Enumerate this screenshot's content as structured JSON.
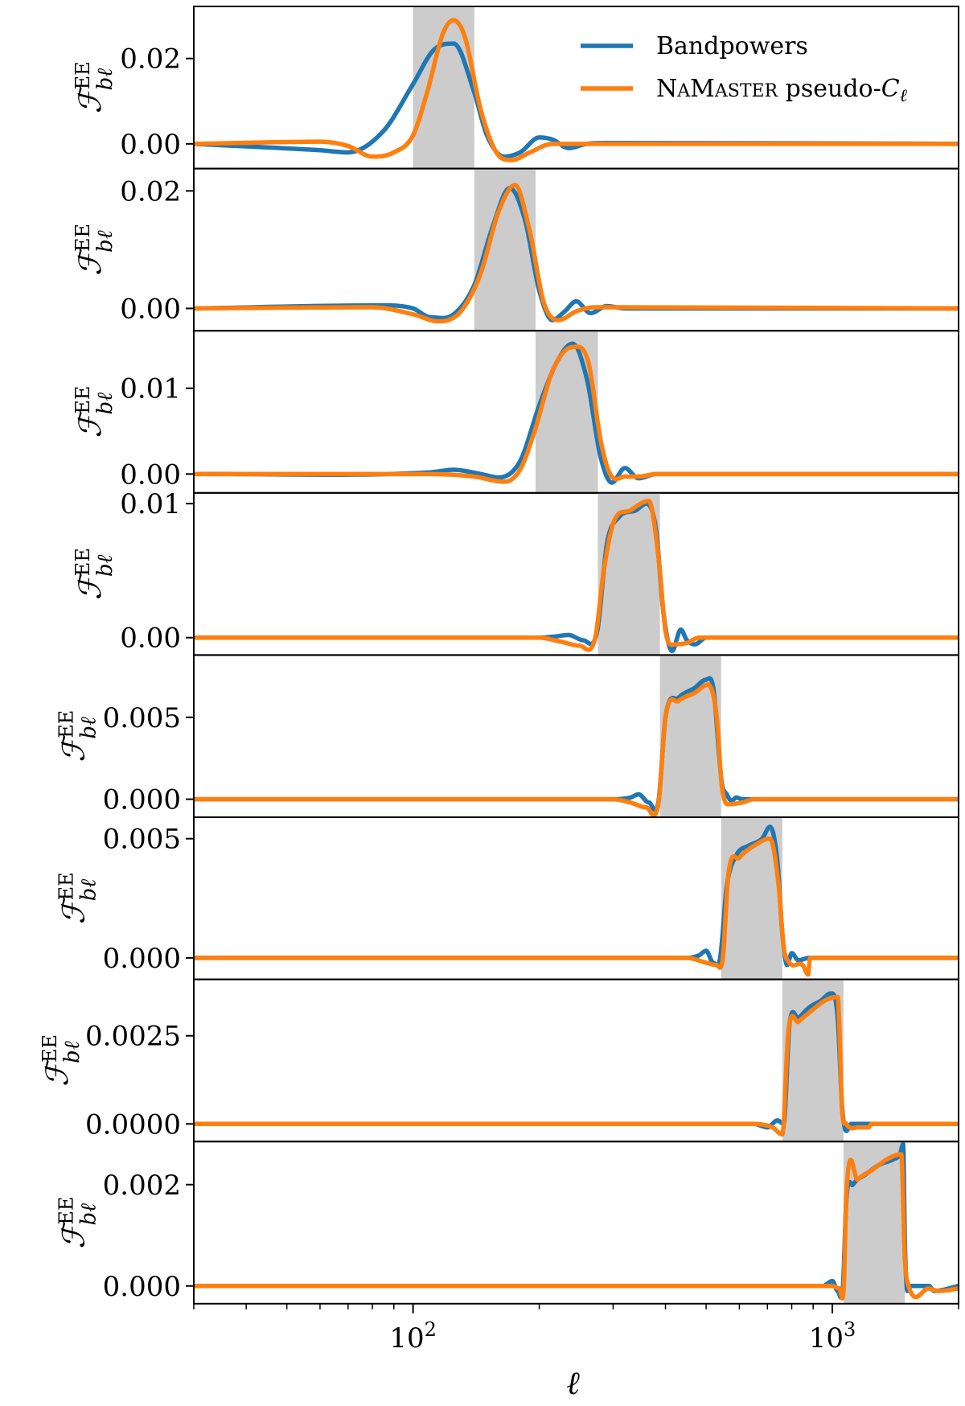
{
  "chart_data": {
    "type": "line",
    "x_scale": "log",
    "xlim": [
      30,
      2000
    ],
    "xlabel": "ℓ",
    "x_ticks": [
      {
        "value": 100,
        "base": "10",
        "exp": "2"
      },
      {
        "value": 1000,
        "base": "10",
        "exp": "3"
      }
    ],
    "ylabel": {
      "main": "ℱ",
      "sup": "EE",
      "sub": "bℓ"
    },
    "legend": {
      "position": "top-right",
      "entries": [
        {
          "label": "Bandpowers",
          "color": "#1f77b4"
        },
        {
          "label_parts": [
            "N",
            "A",
            "M",
            "ASTER",
            " pseudo-",
            "C",
            "ℓ"
          ],
          "color": "#ff7f0e"
        }
      ]
    },
    "colors": {
      "bandpowers": "#1f77b4",
      "namaster": "#ff7f0e",
      "band_fill": "#cccccc"
    },
    "panels": [
      {
        "band": [
          100,
          140
        ],
        "ylim": [
          -0.0058,
          0.0322
        ],
        "yticks": [
          {
            "v": 0.0,
            "label": "0.00"
          },
          {
            "v": 0.02,
            "label": "0.02"
          }
        ],
        "bandpowers": [
          [
            30,
            0
          ],
          [
            60,
            -0.0015
          ],
          [
            70,
            -0.002
          ],
          [
            85,
            0.003
          ],
          [
            100,
            0.014
          ],
          [
            112,
            0.022
          ],
          [
            125,
            0.0235
          ],
          [
            140,
            0.012
          ],
          [
            150,
            0.002
          ],
          [
            165,
            -0.003
          ],
          [
            180,
            -0.002
          ],
          [
            200,
            0.0015
          ],
          [
            215,
            0.001
          ],
          [
            235,
            -0.001
          ],
          [
            260,
            0
          ],
          [
            300,
            0.0002
          ],
          [
            2000,
            0
          ]
        ],
        "namaster": [
          [
            30,
            0
          ],
          [
            60,
            0.0005
          ],
          [
            70,
            -0.0005
          ],
          [
            80,
            -0.003
          ],
          [
            90,
            -0.002
          ],
          [
            100,
            0.002
          ],
          [
            108,
            0.012
          ],
          [
            118,
            0.026
          ],
          [
            125,
            0.029
          ],
          [
            133,
            0.025
          ],
          [
            145,
            0.008
          ],
          [
            158,
            -0.002
          ],
          [
            172,
            -0.0038
          ],
          [
            190,
            -0.002
          ],
          [
            215,
            0
          ],
          [
            2000,
            0
          ]
        ]
      },
      {
        "band": [
          140,
          196
        ],
        "ylim": [
          -0.0038,
          0.0238
        ],
        "yticks": [
          {
            "v": 0.0,
            "label": "0.00"
          },
          {
            "v": 0.02,
            "label": "0.02"
          }
        ],
        "bandpowers": [
          [
            30,
            0
          ],
          [
            80,
            0.0005
          ],
          [
            100,
            0
          ],
          [
            110,
            -0.0015
          ],
          [
            125,
            -0.001
          ],
          [
            140,
            0.004
          ],
          [
            155,
            0.014
          ],
          [
            170,
            0.0205
          ],
          [
            185,
            0.015
          ],
          [
            200,
            0.003
          ],
          [
            215,
            -0.002
          ],
          [
            230,
            -0.0005
          ],
          [
            245,
            0.0012
          ],
          [
            265,
            -0.0008
          ],
          [
            290,
            0.0004
          ],
          [
            320,
            0
          ],
          [
            2000,
            0
          ]
        ],
        "namaster": [
          [
            30,
            0
          ],
          [
            80,
            0.0002
          ],
          [
            100,
            -0.001
          ],
          [
            115,
            -0.0022
          ],
          [
            130,
            -0.0005
          ],
          [
            145,
            0.006
          ],
          [
            160,
            0.0165
          ],
          [
            175,
            0.021
          ],
          [
            190,
            0.013
          ],
          [
            205,
            0.001
          ],
          [
            222,
            -0.002
          ],
          [
            245,
            -0.0005
          ],
          [
            270,
            0.0002
          ],
          [
            2000,
            0
          ]
        ]
      },
      {
        "band": [
          196,
          276
        ],
        "ylim": [
          -0.0022,
          0.0167
        ],
        "yticks": [
          {
            "v": 0.0,
            "label": "0.00"
          },
          {
            "v": 0.01,
            "label": "0.01"
          }
        ],
        "bandpowers": [
          [
            30,
            0
          ],
          [
            110,
            0.0002
          ],
          [
            125,
            0.0005
          ],
          [
            145,
            0
          ],
          [
            160,
            -0.0004
          ],
          [
            180,
            0.0015
          ],
          [
            200,
            0.008
          ],
          [
            220,
            0.013
          ],
          [
            240,
            0.0152
          ],
          [
            260,
            0.011
          ],
          [
            280,
            0.002
          ],
          [
            298,
            -0.001
          ],
          [
            320,
            0.0007
          ],
          [
            345,
            -0.0005
          ],
          [
            380,
            0
          ],
          [
            2000,
            0
          ]
        ],
        "namaster": [
          [
            30,
            0
          ],
          [
            110,
            0
          ],
          [
            140,
            -0.0003
          ],
          [
            165,
            -0.0009
          ],
          [
            180,
            0.0005
          ],
          [
            195,
            0.005
          ],
          [
            215,
            0.012
          ],
          [
            240,
            0.0148
          ],
          [
            262,
            0.013
          ],
          [
            280,
            0.004
          ],
          [
            295,
            0
          ],
          [
            320,
            -0.0003
          ],
          [
            345,
            -0.0003
          ],
          [
            380,
            0
          ],
          [
            2000,
            0
          ]
        ]
      },
      {
        "band": [
          276,
          388
        ],
        "ylim": [
          -0.0013,
          0.0108
        ],
        "yticks": [
          {
            "v": 0.0,
            "label": "0.00"
          },
          {
            "v": 0.01,
            "label": "0.01"
          }
        ],
        "bandpowers": [
          [
            30,
            0
          ],
          [
            200,
            0
          ],
          [
            220,
            0.0001
          ],
          [
            235,
            0.0002
          ],
          [
            255,
            -0.0002
          ],
          [
            275,
            0.0005
          ],
          [
            290,
            0.007
          ],
          [
            310,
            0.009
          ],
          [
            340,
            0.0095
          ],
          [
            360,
            0.01
          ],
          [
            380,
            0.008
          ],
          [
            395,
            0.002
          ],
          [
            415,
            -0.001
          ],
          [
            435,
            0.0006
          ],
          [
            450,
            -0.0002
          ],
          [
            470,
            -0.0005
          ],
          [
            500,
            0
          ],
          [
            2000,
            0
          ]
        ],
        "namaster": [
          [
            30,
            0
          ],
          [
            200,
            0
          ],
          [
            225,
            -0.0003
          ],
          [
            250,
            -0.0006
          ],
          [
            272,
            0
          ],
          [
            285,
            0.005
          ],
          [
            300,
            0.0085
          ],
          [
            330,
            0.0095
          ],
          [
            365,
            0.0102
          ],
          [
            385,
            0.006
          ],
          [
            400,
            0.0005
          ],
          [
            420,
            -0.0005
          ],
          [
            450,
            -0.0004
          ],
          [
            480,
            0
          ],
          [
            2000,
            0
          ]
        ]
      },
      {
        "band": [
          388,
          543
        ],
        "ylim": [
          -0.0011,
          0.0088
        ],
        "yticks": [
          {
            "v": 0.0,
            "label": "0.000"
          },
          {
            "v": 0.005,
            "label": "0.005"
          }
        ],
        "bandpowers": [
          [
            30,
            0
          ],
          [
            300,
            0
          ],
          [
            330,
            0.0001
          ],
          [
            345,
            0.0003
          ],
          [
            365,
            -0.0002
          ],
          [
            385,
            -0.0001
          ],
          [
            400,
            0.005
          ],
          [
            430,
            0.0062
          ],
          [
            470,
            0.0068
          ],
          [
            500,
            0.0073
          ],
          [
            520,
            0.0068
          ],
          [
            545,
            0.001
          ],
          [
            560,
            0.0003
          ],
          [
            575,
            -0.0001
          ],
          [
            590,
            0.0001
          ],
          [
            610,
            0
          ],
          [
            2000,
            0
          ]
        ],
        "namaster": [
          [
            30,
            0
          ],
          [
            300,
            0
          ],
          [
            330,
            -0.0002
          ],
          [
            360,
            -0.0005
          ],
          [
            385,
            -0.0002
          ],
          [
            400,
            0.005
          ],
          [
            430,
            0.006
          ],
          [
            470,
            0.0065
          ],
          [
            505,
            0.007
          ],
          [
            530,
            0.005
          ],
          [
            545,
            0.0008
          ],
          [
            570,
            -0.0003
          ],
          [
            610,
            -0.0002
          ],
          [
            650,
            0
          ],
          [
            2000,
            0
          ]
        ]
      },
      {
        "band": [
          543,
          760
        ],
        "ylim": [
          -0.0009,
          0.0059
        ],
        "yticks": [
          {
            "v": 0.0,
            "label": "0.000"
          },
          {
            "v": 0.005,
            "label": "0.005"
          }
        ],
        "bandpowers": [
          [
            30,
            0
          ],
          [
            450,
            0
          ],
          [
            480,
            0.0001
          ],
          [
            500,
            0.0003
          ],
          [
            520,
            -0.0002
          ],
          [
            540,
            0
          ],
          [
            560,
            0.003
          ],
          [
            590,
            0.0043
          ],
          [
            630,
            0.0047
          ],
          [
            680,
            0.005
          ],
          [
            710,
            0.0055
          ],
          [
            740,
            0.004
          ],
          [
            760,
            0.001
          ],
          [
            780,
            -0.0003
          ],
          [
            800,
            0.0002
          ],
          [
            830,
            -0.0001
          ],
          [
            880,
            0
          ],
          [
            2000,
            0
          ]
        ],
        "namaster": [
          [
            30,
            0
          ],
          [
            450,
            0
          ],
          [
            500,
            -0.0002
          ],
          [
            530,
            -0.0003
          ],
          [
            548,
            0
          ],
          [
            565,
            0.0035
          ],
          [
            600,
            0.0042
          ],
          [
            650,
            0.0047
          ],
          [
            710,
            0.005
          ],
          [
            745,
            0.003
          ],
          [
            765,
            0.0005
          ],
          [
            790,
            -0.0002
          ],
          [
            850,
            -0.0003
          ],
          [
            875,
            -0.0007
          ],
          [
            885,
            0
          ],
          [
            2000,
            0
          ]
        ]
      },
      {
        "band": [
          760,
          1063
        ],
        "ylim": [
          -0.0005,
          0.0041
        ],
        "yticks": [
          {
            "v": 0.0,
            "label": "0.0000"
          },
          {
            "v": 0.0025,
            "label": "0.0025"
          }
        ],
        "bandpowers": [
          [
            30,
            0
          ],
          [
            650,
            0
          ],
          [
            700,
            -0.0001
          ],
          [
            740,
            0.0001
          ],
          [
            765,
            0
          ],
          [
            790,
            0.0028
          ],
          [
            830,
            0.003
          ],
          [
            880,
            0.0033
          ],
          [
            940,
            0.0035
          ],
          [
            990,
            0.0037
          ],
          [
            1030,
            0.003
          ],
          [
            1055,
            0.0005
          ],
          [
            1080,
            -0.0002
          ],
          [
            1110,
            0
          ],
          [
            2000,
            0
          ]
        ],
        "namaster": [
          [
            30,
            0
          ],
          [
            650,
            0
          ],
          [
            720,
            -0.0001
          ],
          [
            760,
            -0.0003
          ],
          [
            785,
            0.0026
          ],
          [
            830,
            0.0029
          ],
          [
            890,
            0.0032
          ],
          [
            960,
            0.0035
          ],
          [
            1030,
            0.0036
          ],
          [
            1055,
            0.0004
          ],
          [
            1080,
            0
          ],
          [
            1150,
            -0.0001
          ],
          [
            1220,
            -0.0001
          ],
          [
            1240,
            0
          ],
          [
            2000,
            0
          ]
        ]
      },
      {
        "band": [
          1063,
          1490
        ],
        "ylim": [
          -0.00035,
          0.00285
        ],
        "yticks": [
          {
            "v": 0.0,
            "label": "0.000"
          },
          {
            "v": 0.002,
            "label": "0.002"
          }
        ],
        "bandpowers": [
          [
            30,
            0
          ],
          [
            950,
            0
          ],
          [
            1000,
            0.0001
          ],
          [
            1030,
            -0.0001
          ],
          [
            1060,
            0
          ],
          [
            1080,
            0.0017
          ],
          [
            1120,
            0.002
          ],
          [
            1200,
            0.0022
          ],
          [
            1300,
            0.0024
          ],
          [
            1400,
            0.0025
          ],
          [
            1450,
            0.0026
          ],
          [
            1475,
            0.0028
          ],
          [
            1490,
            0.0008
          ],
          [
            1510,
            -0.0001
          ],
          [
            1540,
            0
          ],
          [
            1700,
            0
          ],
          [
            1750,
            -0.0001
          ],
          [
            2000,
            0
          ]
        ],
        "namaster": [
          [
            30,
            0
          ],
          [
            1000,
            0
          ],
          [
            1040,
            -5e-05
          ],
          [
            1065,
            0
          ],
          [
            1080,
            0.0018
          ],
          [
            1150,
            0.0021
          ],
          [
            1250,
            0.0023
          ],
          [
            1350,
            0.0025
          ],
          [
            1460,
            0.0026
          ],
          [
            1490,
            0.0005
          ],
          [
            1520,
            0
          ],
          [
            1700,
            -5e-05
          ],
          [
            1800,
            -0.0001
          ],
          [
            2000,
            -5e-05
          ]
        ]
      }
    ]
  }
}
